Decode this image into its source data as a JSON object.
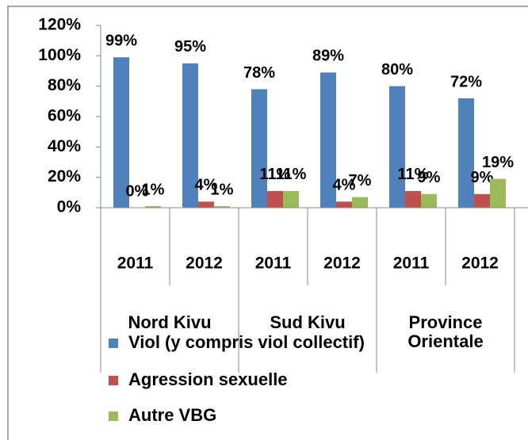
{
  "chart_data": {
    "type": "bar",
    "categories": [
      "2011",
      "2012",
      "2011",
      "2012",
      "2011",
      "2012"
    ],
    "groups": [
      "Nord Kivu",
      "Sud Kivu",
      "Province Orientale"
    ],
    "series": [
      {
        "name": "Viol (y compris viol collectif)",
        "color": "#4f81bd",
        "values": [
          99,
          95,
          78,
          89,
          80,
          72
        ],
        "value_labels": [
          "99%",
          "95%",
          "78%",
          "89%",
          "80%",
          "72%"
        ]
      },
      {
        "name": "Agression sexuelle",
        "color": "#c0504d",
        "values": [
          0,
          4,
          11,
          4,
          11,
          9
        ],
        "value_labels": [
          "0%",
          "4%",
          "11%",
          "4%",
          "11%",
          "9%"
        ]
      },
      {
        "name": "Autre VBG",
        "color": "#9bbb59",
        "values": [
          1,
          1,
          11,
          7,
          9,
          19
        ],
        "value_labels": [
          "1%",
          "1%",
          "11%",
          "7%",
          "9%",
          "19%"
        ]
      }
    ],
    "ylim": [
      0,
      120
    ],
    "yticks": [
      {
        "value": 0,
        "label": "0%"
      },
      {
        "value": 20,
        "label": "20%"
      },
      {
        "value": 40,
        "label": "40%"
      },
      {
        "value": 60,
        "label": "60%"
      },
      {
        "value": 80,
        "label": "80%"
      },
      {
        "value": 100,
        "label": "100%"
      },
      {
        "value": 120,
        "label": "120%"
      }
    ],
    "legend": "bottom-left"
  }
}
